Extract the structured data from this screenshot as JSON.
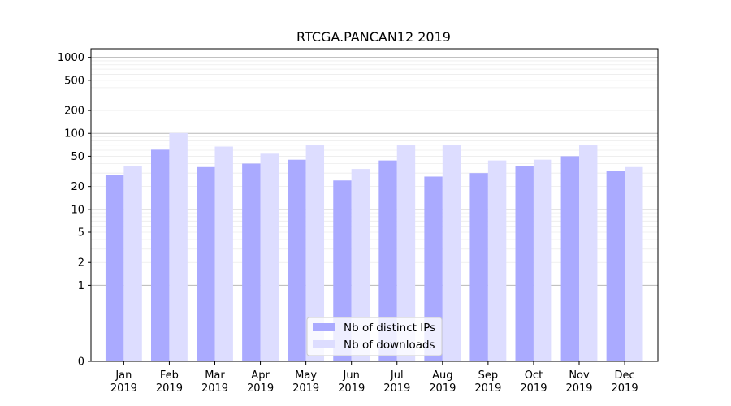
{
  "chart_data": {
    "type": "bar",
    "title": "RTCGA.PANCAN12 2019",
    "xlabel": "",
    "ylabel": "",
    "y_scale": "symlog",
    "ylim": [
      0,
      1300
    ],
    "y_ticks": [
      {
        "value": 0,
        "label": "0"
      },
      {
        "value": 1,
        "label": "1"
      },
      {
        "value": 2,
        "label": "2"
      },
      {
        "value": 5,
        "label": "5"
      },
      {
        "value": 10,
        "label": "10"
      },
      {
        "value": 20,
        "label": "20"
      },
      {
        "value": 50,
        "label": "50"
      },
      {
        "value": 100,
        "label": "100"
      },
      {
        "value": 200,
        "label": "200"
      },
      {
        "value": 500,
        "label": "500"
      },
      {
        "value": 1000,
        "label": "1000"
      }
    ],
    "categories": [
      {
        "month": "Jan",
        "year": "2019"
      },
      {
        "month": "Feb",
        "year": "2019"
      },
      {
        "month": "Mar",
        "year": "2019"
      },
      {
        "month": "Apr",
        "year": "2019"
      },
      {
        "month": "May",
        "year": "2019"
      },
      {
        "month": "Jun",
        "year": "2019"
      },
      {
        "month": "Jul",
        "year": "2019"
      },
      {
        "month": "Aug",
        "year": "2019"
      },
      {
        "month": "Sep",
        "year": "2019"
      },
      {
        "month": "Oct",
        "year": "2019"
      },
      {
        "month": "Nov",
        "year": "2019"
      },
      {
        "month": "Dec",
        "year": "2019"
      }
    ],
    "series": [
      {
        "name": "Nb of distinct IPs",
        "color": "#aaaaff",
        "values": [
          28,
          61,
          36,
          40,
          45,
          24,
          44,
          27,
          30,
          37,
          50,
          32
        ]
      },
      {
        "name": "Nb of downloads",
        "color": "#ddddff",
        "values": [
          37,
          101,
          67,
          54,
          71,
          34,
          71,
          70,
          44,
          45,
          71,
          36
        ]
      }
    ],
    "grid": true,
    "legend_position": "bottom-center"
  }
}
